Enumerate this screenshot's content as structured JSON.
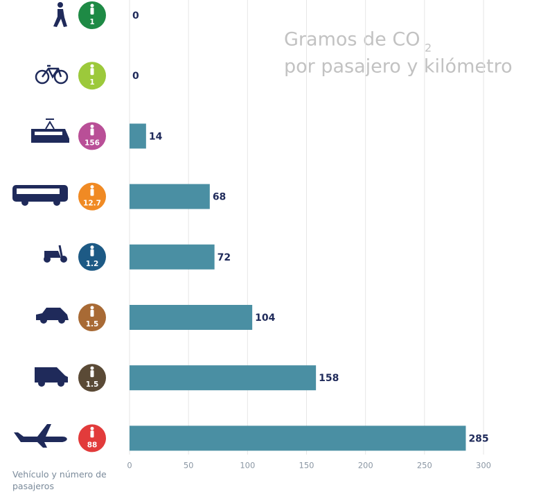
{
  "chart_data": {
    "type": "bar",
    "orientation": "horizontal",
    "title_line1": "Gramos de CO",
    "title_subscript": "2",
    "title_line2": "por pasajero y kilómetro",
    "x_label": "Vehículo y número de pasajeros",
    "categories": [
      null,
      null,
      null,
      null,
      null,
      null,
      null,
      null
    ],
    "values": [
      0,
      0,
      14,
      68,
      72,
      104,
      158,
      285
    ],
    "color": "#4a8fa3",
    "label_color": "#1f2a5a",
    "passengers": [
      1,
      1,
      156,
      12.7,
      1.2,
      1.5,
      1.5,
      88
    ],
    "passenger_colors": [
      "#1e8a45",
      "#9cc93b",
      "#b94f97",
      "#f08a24",
      "#1d5a85",
      "#a86a35",
      "#5a4a36",
      "#e23b3b"
    ],
    "xlim": [
      0,
      300
    ],
    "xticks": [
      0,
      50,
      100,
      150,
      200,
      250,
      300
    ],
    "grid": true
  }
}
